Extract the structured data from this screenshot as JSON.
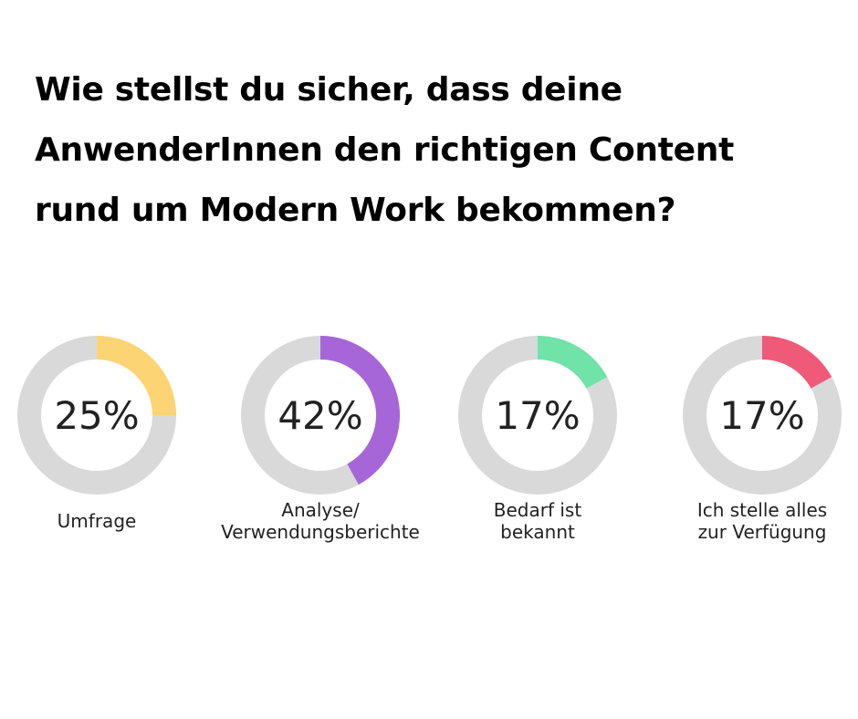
{
  "title_lines": [
    "Wie stellst du sicher, dass deine",
    "AnwenderInnen den richtigen Content",
    "rund um Modern Work bekommen?"
  ],
  "colors": {
    "track": "#d9d9d9",
    "text": "#222222"
  },
  "chart_data": {
    "type": "pie",
    "title": "Wie stellst du sicher, dass deine AnwenderInnen den richtigen Content rund um Modern Work bekommen?",
    "unit": "%",
    "series": [
      {
        "name": "Umfrage",
        "value": 25,
        "display": "25%",
        "label_lines": [
          "Umfrage"
        ],
        "color": "#fdd474"
      },
      {
        "name": "Analyse/ Verwendungsberichte",
        "value": 42,
        "display": "42%",
        "label_lines": [
          "Analyse/",
          "Verwendungsberichte"
        ],
        "color": "#a666d8"
      },
      {
        "name": "Bedarf ist bekannt",
        "value": 17,
        "display": "17%",
        "label_lines": [
          "Bedarf ist",
          "bekannt"
        ],
        "color": "#6fe3a8"
      },
      {
        "name": "Ich stelle alles zur Verfügung",
        "value": 17,
        "display": "17%",
        "label_lines": [
          "Ich stelle alles",
          "zur Verfügung"
        ],
        "color": "#ee5a78"
      }
    ]
  }
}
